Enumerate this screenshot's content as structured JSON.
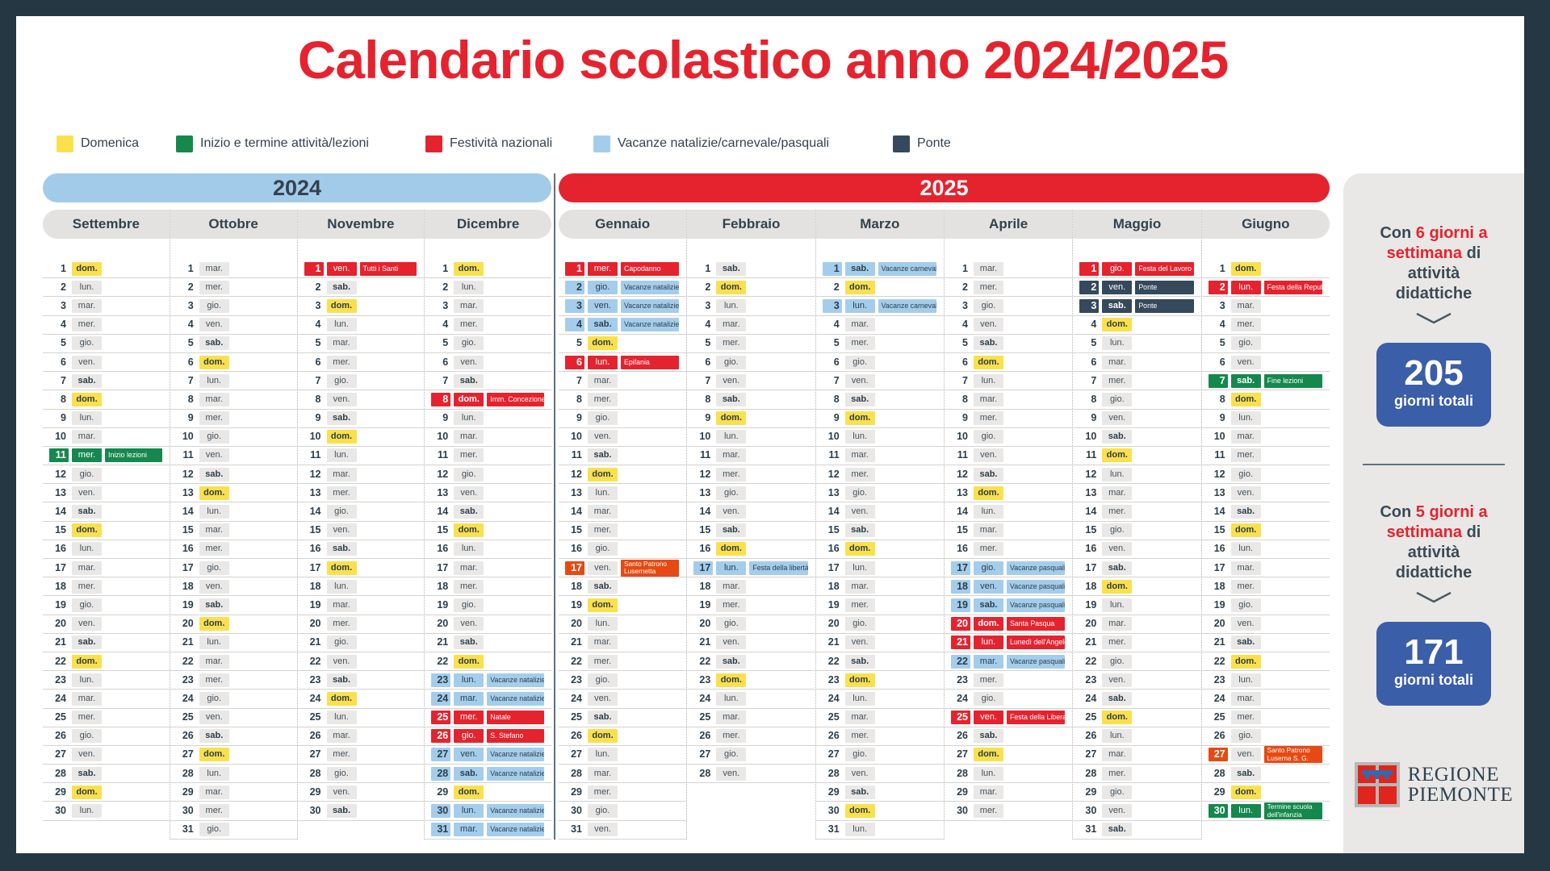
{
  "title": "Calendario scolastico anno 2024/2025",
  "colors": {
    "frame": "#243743",
    "red": "#e5232e",
    "yellow": "#fbe04d",
    "green": "#15884e",
    "blue": "#a4cdec",
    "dark": "#35495c",
    "orange": "#e64a12",
    "banner_blue": "#a2cbea",
    "chip_gray": "#e9e8e6",
    "header_gray": "#e3e2e0",
    "panel_gray": "#eae8e6",
    "box_blue": "#3a5ea8",
    "text_dark": "#33424e",
    "title_red": "#e5232e"
  },
  "legend": [
    {
      "label": "Domenica",
      "color": "#fbe04d"
    },
    {
      "label": "Inizio e termine attività/lezioni",
      "color": "#15884e"
    },
    {
      "label": "Festività nazionali",
      "color": "#e5232e"
    },
    {
      "label": "Vacanze natalizie/carnevale/pasquali",
      "color": "#a4cdec"
    },
    {
      "label": "Ponte",
      "color": "#35495c"
    }
  ],
  "weekdays": [
    "dom.",
    "lun.",
    "mar.",
    "mer.",
    "gio.",
    "ven.",
    "sab."
  ],
  "years": [
    {
      "label": "2024",
      "months": [
        {
          "name": "Settembre",
          "days": 30,
          "start": 0,
          "events": {
            "11": [
              "green",
              "Inizio lezioni"
            ]
          }
        },
        {
          "name": "Ottobre",
          "days": 31,
          "start": 2,
          "events": {}
        },
        {
          "name": "Novembre",
          "days": 30,
          "start": 5,
          "events": {
            "1": [
              "red",
              "Tutti i Santi"
            ]
          }
        },
        {
          "name": "Dicembre",
          "days": 31,
          "start": 0,
          "events": {
            "8": [
              "red",
              "Imm. Concezione"
            ],
            "23": [
              "blue",
              "Vacanze natalizie"
            ],
            "24": [
              "blue",
              "Vacanze natalizie"
            ],
            "25": [
              "red",
              "Natale"
            ],
            "26": [
              "red",
              "S. Stefano"
            ],
            "27": [
              "blue",
              "Vacanze natalizie"
            ],
            "28": [
              "blue",
              "Vacanze natalizie"
            ],
            "30": [
              "blue",
              "Vacanze natalizie"
            ],
            "31": [
              "blue",
              "Vacanze natalizie"
            ]
          }
        }
      ]
    },
    {
      "label": "2025",
      "months": [
        {
          "name": "Gennaio",
          "days": 31,
          "start": 3,
          "events": {
            "1": [
              "red",
              "Capodanno"
            ],
            "2": [
              "blue",
              "Vacanze natalizie"
            ],
            "3": [
              "blue",
              "Vacanze natalizie"
            ],
            "4": [
              "blue",
              "Vacanze natalizie"
            ],
            "6": [
              "red",
              "Epifania"
            ],
            "17": [
              "orange",
              "Santo Patrono\nLusernetta"
            ]
          }
        },
        {
          "name": "Febbraio",
          "days": 28,
          "start": 6,
          "events": {
            "17": [
              "blue",
              "Festa della libertà"
            ]
          }
        },
        {
          "name": "Marzo",
          "days": 31,
          "start": 6,
          "events": {
            "1": [
              "blue",
              "Vacanze carnevale"
            ],
            "3": [
              "blue",
              "Vacanze carnevale"
            ]
          }
        },
        {
          "name": "Aprile",
          "days": 30,
          "start": 2,
          "events": {
            "17": [
              "blue",
              "Vacanze pasquali"
            ],
            "18": [
              "blue",
              "Vacanze pasquali"
            ],
            "19": [
              "blue",
              "Vacanze pasquali"
            ],
            "20": [
              "red",
              "Santa Pasqua"
            ],
            "21": [
              "red",
              "Lunedì dell'Angelo"
            ],
            "22": [
              "blue",
              "Vacanze pasquali"
            ],
            "25": [
              "red",
              "Festa della Liberazione"
            ]
          }
        },
        {
          "name": "Maggio",
          "days": 31,
          "start": 4,
          "events": {
            "1": [
              "red",
              "Festa del Lavoro"
            ],
            "2": [
              "dark",
              "Ponte"
            ],
            "3": [
              "dark",
              "Ponte"
            ]
          }
        },
        {
          "name": "Giugno",
          "days": 30,
          "start": 0,
          "events": {
            "2": [
              "red",
              "Festa della Repubblica"
            ],
            "7": [
              "green",
              "Fine lezioni"
            ],
            "27": [
              "orange",
              "Santo Patrono\nLuserna S. G."
            ],
            "30": [
              "green",
              "Termine scuola\ndell'infanzia"
            ]
          }
        }
      ]
    }
  ],
  "sidebar": {
    "sections": [
      {
        "intro_prefix": "Con",
        "intro_highlight": "6 giorni a settimana",
        "intro_rest": "di attività didattiche",
        "total_value": "205",
        "total_caption": "giorni totali"
      },
      {
        "intro_prefix": "Con",
        "intro_highlight": "5 giorni a settimana",
        "intro_rest": "di attività didattiche",
        "total_value": "171",
        "total_caption": "giorni totali"
      }
    ],
    "logo_line1": "REGIONE",
    "logo_line2": "PIEMONTE"
  }
}
